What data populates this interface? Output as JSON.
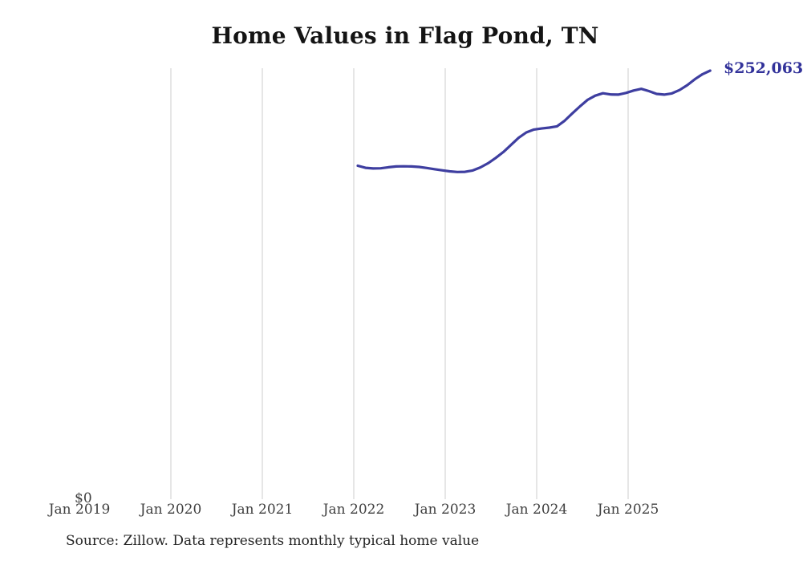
{
  "footer": {
    "source": "Source: Zillow. Data represents monthly typical home value"
  },
  "chart_data": {
    "type": "line",
    "title": "Home Values in Flag Pond, TN",
    "xlabel": "",
    "ylabel": "",
    "ylim": [
      0,
      260000
    ],
    "grid": "vertical gridlines at each January only",
    "legend": "none",
    "x_tick_labels": [
      "Jan 2019",
      "Jan 2020",
      "Jan 2021",
      "Jan 2022",
      "Jan 2023",
      "Jan 2024",
      "Jan 2025"
    ],
    "y_zero_label": "$0",
    "latest_value_label": "$252,063",
    "latest_value": 252063,
    "line_color": "#3e3ea0",
    "label_color": "#32329a",
    "grid_color": "#cccccc",
    "series": [
      {
        "name": "Typical home value (monthly)",
        "start": "Jan 2022",
        "end": "Nov 2025",
        "months": [
          "2022-01",
          "2022-02",
          "2022-03",
          "2022-04",
          "2022-05",
          "2022-06",
          "2022-07",
          "2022-08",
          "2022-09",
          "2022-10",
          "2022-11",
          "2022-12",
          "2023-01",
          "2023-02",
          "2023-03",
          "2023-04",
          "2023-05",
          "2023-06",
          "2023-07",
          "2023-08",
          "2023-09",
          "2023-10",
          "2023-11",
          "2023-12",
          "2024-01",
          "2024-02",
          "2024-03",
          "2024-04",
          "2024-05",
          "2024-06",
          "2024-07",
          "2024-08",
          "2024-09",
          "2024-10",
          "2024-11",
          "2024-12",
          "2025-01",
          "2025-02",
          "2025-03",
          "2025-04",
          "2025-05",
          "2025-06",
          "2025-07",
          "2025-08",
          "2025-09",
          "2025-10",
          "2025-11"
        ],
        "values": [
          195900,
          194700,
          194300,
          194400,
          195000,
          195500,
          195600,
          195500,
          195200,
          194600,
          193900,
          193200,
          192600,
          192200,
          192300,
          193100,
          194900,
          197400,
          200500,
          204000,
          208200,
          212400,
          215600,
          217300,
          217900,
          218400,
          219200,
          222500,
          226800,
          231000,
          234800,
          237300,
          238700,
          238000,
          237900,
          238900,
          240300,
          241300,
          240000,
          238300,
          237900,
          238600,
          240600,
          243500,
          247000,
          250000,
          252063
        ]
      }
    ]
  }
}
